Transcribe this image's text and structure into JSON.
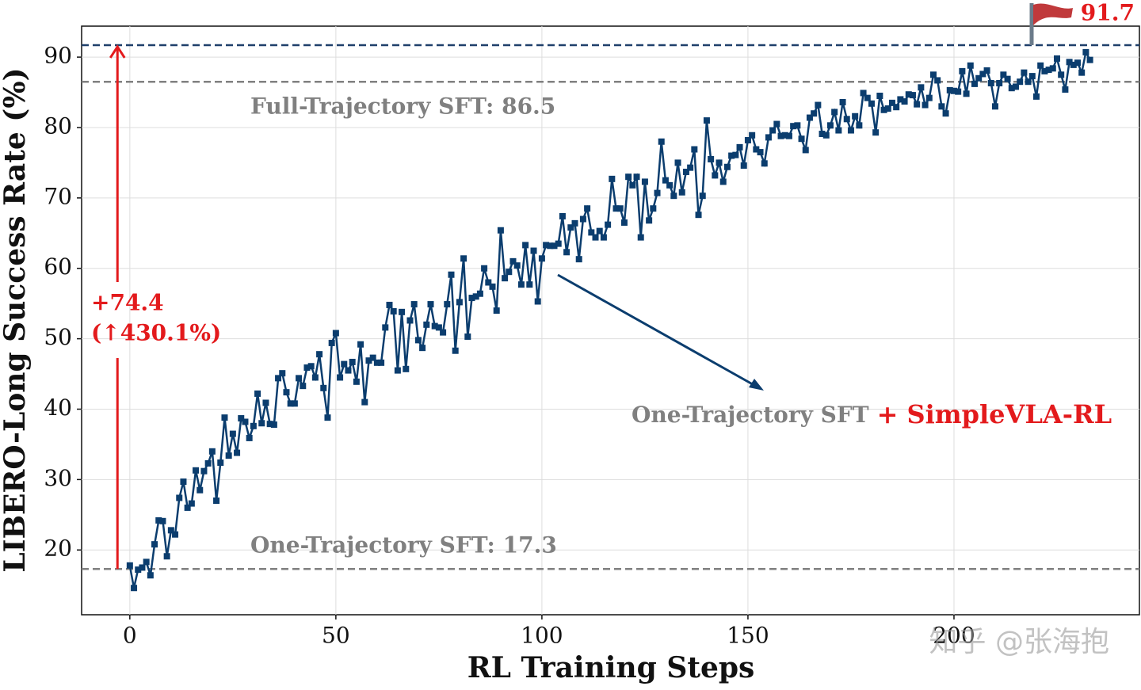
{
  "chart_data": {
    "type": "line",
    "xlabel": "RL Training Steps",
    "ylabel": "LIBERO-Long Success Rate (%)",
    "xlim": [
      -11.7,
      245
    ],
    "ylim": [
      10.8,
      94.4
    ],
    "xticks": [
      0,
      50,
      100,
      150,
      200
    ],
    "yticks": [
      20,
      30,
      40,
      50,
      60,
      70,
      80,
      90
    ],
    "grid": true,
    "color": "#0b3d6e",
    "x": [
      0,
      1,
      2,
      3,
      4,
      5,
      6,
      7,
      8,
      9,
      10,
      11,
      12,
      13,
      14,
      15,
      16,
      17,
      18,
      19,
      20,
      21,
      22,
      23,
      24,
      25,
      26,
      27,
      28,
      29,
      30,
      31,
      32,
      33,
      34,
      35,
      36,
      37,
      38,
      39,
      40,
      41,
      42,
      43,
      44,
      45,
      46,
      47,
      48,
      49,
      50,
      51,
      52,
      53,
      54,
      55,
      56,
      57,
      58,
      59,
      60,
      61,
      62,
      63,
      64,
      65,
      66,
      67,
      68,
      69,
      70,
      71,
      72,
      73,
      74,
      75,
      76,
      77,
      78,
      79,
      80,
      81,
      82,
      83,
      84,
      85,
      86,
      87,
      88,
      89,
      90,
      91,
      92,
      93,
      94,
      95,
      96,
      97,
      98,
      99,
      100,
      101,
      102,
      103,
      104,
      105,
      106,
      107,
      108,
      109,
      110,
      111,
      112,
      113,
      114,
      115,
      116,
      117,
      118,
      119,
      120,
      121,
      122,
      123,
      124,
      125,
      126,
      127,
      128,
      129,
      130,
      131,
      132,
      133,
      134,
      135,
      136,
      137,
      138,
      139,
      140,
      141,
      142,
      143,
      144,
      145,
      146,
      147,
      148,
      149,
      150,
      151,
      152,
      153,
      154,
      155,
      156,
      157,
      158,
      159,
      160,
      161,
      162,
      163,
      164,
      165,
      166,
      167,
      168,
      169,
      170,
      171,
      172,
      173,
      174,
      175,
      176,
      177,
      178,
      179,
      180,
      181,
      182,
      183,
      184,
      185,
      186,
      187,
      188,
      189,
      190,
      191,
      192,
      193,
      194,
      195,
      196,
      197,
      198,
      199,
      200,
      201,
      202,
      203,
      204,
      205,
      206,
      207,
      208,
      209,
      210,
      211,
      212,
      213,
      214,
      215,
      216,
      217,
      218,
      219,
      220,
      221,
      222,
      223,
      224,
      225,
      226,
      227,
      228,
      229,
      230,
      231,
      232,
      233
    ],
    "values": [
      17.8,
      14.6,
      17.2,
      17.5,
      18.3,
      16.4,
      20.8,
      24.2,
      24.1,
      19.1,
      22.8,
      22.2,
      27.4,
      29.7,
      26.0,
      26.6,
      31.3,
      28.5,
      31.2,
      32.3,
      34.0,
      27.0,
      32.4,
      38.8,
      33.4,
      36.5,
      33.8,
      38.7,
      38.2,
      35.9,
      37.6,
      42.2,
      38.0,
      40.9,
      37.9,
      37.8,
      44.4,
      45.1,
      42.4,
      40.8,
      40.8,
      44.4,
      43.3,
      45.9,
      46.1,
      44.5,
      47.8,
      43.0,
      38.8,
      49.4,
      50.8,
      44.5,
      46.4,
      45.5,
      46.7,
      43.9,
      49.2,
      41.0,
      46.9,
      47.3,
      46.6,
      46.6,
      51.6,
      54.8,
      53.9,
      45.5,
      53.8,
      45.7,
      52.6,
      54.9,
      49.8,
      48.7,
      52.0,
      54.9,
      51.8,
      51.6,
      50.9,
      54.9,
      59.1,
      48.3,
      55.2,
      61.4,
      50.3,
      55.8,
      56.0,
      56.4,
      60.0,
      58.0,
      57.4,
      54.0,
      65.4,
      58.6,
      59.5,
      61.0,
      60.4,
      57.7,
      63.3,
      57.7,
      62.5,
      55.3,
      61.4,
      63.3,
      63.2,
      63.2,
      63.5,
      67.4,
      62.3,
      65.8,
      66.4,
      61.3,
      67.0,
      68.5,
      65.1,
      64.4,
      65.3,
      64.4,
      66.2,
      72.7,
      68.5,
      68.5,
      66.5,
      73.0,
      71.8,
      73.0,
      64.4,
      72.3,
      66.8,
      68.5,
      70.7,
      78.0,
      72.5,
      71.8,
      70.3,
      75.0,
      70.8,
      73.7,
      74.3,
      76.9,
      67.6,
      70.3,
      81.0,
      75.5,
      73.2,
      75.0,
      72.3,
      74.4,
      76.0,
      76.1,
      77.2,
      74.6,
      78.2,
      78.9,
      76.9,
      76.5,
      74.9,
      78.6,
      79.6,
      80.5,
      78.8,
      78.9,
      78.8,
      80.2,
      80.3,
      78.4,
      76.8,
      81.4,
      82.0,
      83.2,
      79.1,
      78.9,
      80.3,
      82.2,
      79.6,
      83.6,
      81.2,
      79.6,
      81.6,
      80.3,
      84.9,
      84.2,
      83.4,
      79.3,
      84.5,
      82.5,
      82.7,
      83.5,
      82.9,
      84.0,
      83.7,
      84.7,
      84.6,
      83.3,
      85.7,
      83.2,
      84.2,
      87.5,
      86.7,
      83.0,
      82.0,
      85.3,
      85.2,
      85.1,
      88.0,
      84.8,
      88.8,
      86.2,
      87.0,
      87.6,
      88.1,
      86.3,
      83.0,
      86.3,
      87.5,
      86.9,
      85.6,
      85.8,
      86.5,
      87.8,
      86.5,
      87.3,
      84.4,
      88.8,
      88.0,
      88.2,
      88.4,
      89.8,
      87.5,
      85.4,
      89.3,
      88.9,
      89.2,
      87.8,
      90.7,
      89.6
    ],
    "reference_lines": [
      {
        "value": 91.7,
        "color": "#1f3f6a"
      },
      {
        "value": 86.5,
        "color": "#808080",
        "label": "Full-Trajectory SFT: 86.5"
      },
      {
        "value": 17.3,
        "color": "#808080",
        "label": "One-Trajectory SFT: 17.3"
      }
    ],
    "improvement": {
      "text": "+74.4",
      "subtext": "(↑430.1%)",
      "color": "#e31a1c"
    },
    "series_annotation": {
      "text": "One-Trajectory SFT",
      "highlight": "+ SimpleVLA-RL"
    },
    "watermark": "知乎 @张海抱"
  }
}
